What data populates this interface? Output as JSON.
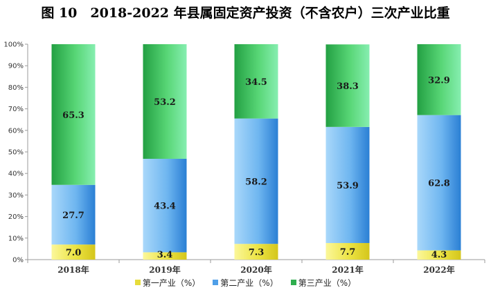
{
  "title": "图 10　2018-2022 年县属固定资产投资（不含农户）三次产业比重",
  "colors": {
    "primary": "#e6dc3a",
    "secondary": "#4f9fe8",
    "tertiary": "#2fae4e"
  },
  "chart_data": {
    "type": "bar",
    "stacked": true,
    "title": "图 10　2018-2022 年县属固定资产投资（不含农户）三次产业比重",
    "categories": [
      "2018年",
      "2019年",
      "2020年",
      "2021年",
      "2022年"
    ],
    "series": [
      {
        "name": "第一产业（%）",
        "values": [
          7.0,
          3.4,
          7.3,
          7.7,
          4.3
        ]
      },
      {
        "name": "第二产业（%）",
        "values": [
          27.7,
          43.4,
          58.2,
          53.9,
          62.8
        ]
      },
      {
        "name": "第三产业（%）",
        "values": [
          65.3,
          53.2,
          34.5,
          38.3,
          32.9
        ]
      }
    ],
    "value_labels": [
      [
        "7.0",
        "3.4",
        "7.3",
        "7.7",
        "4.3"
      ],
      [
        "27.7",
        "43.4",
        "58.2",
        "53.9",
        "62.8"
      ],
      [
        "65.3",
        "53.2",
        "34.5",
        "38.3",
        "32.9"
      ]
    ],
    "yticks": [
      "0%",
      "10%",
      "20%",
      "30%",
      "40%",
      "50%",
      "60%",
      "70%",
      "80%",
      "90%",
      "100%"
    ],
    "ylim": [
      0,
      100
    ],
    "grid": false,
    "legend_position": "bottom"
  }
}
